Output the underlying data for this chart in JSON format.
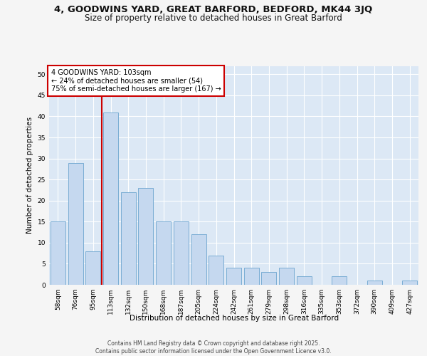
{
  "title_line1": "4, GOODWINS YARD, GREAT BARFORD, BEDFORD, MK44 3JQ",
  "title_line2": "Size of property relative to detached houses in Great Barford",
  "xlabel": "Distribution of detached houses by size in Great Barford",
  "ylabel": "Number of detached properties",
  "categories": [
    "58sqm",
    "76sqm",
    "95sqm",
    "113sqm",
    "132sqm",
    "150sqm",
    "168sqm",
    "187sqm",
    "205sqm",
    "224sqm",
    "242sqm",
    "261sqm",
    "279sqm",
    "298sqm",
    "316sqm",
    "335sqm",
    "353sqm",
    "372sqm",
    "390sqm",
    "409sqm",
    "427sqm"
  ],
  "values": [
    15,
    29,
    8,
    41,
    22,
    23,
    15,
    15,
    12,
    7,
    4,
    4,
    3,
    4,
    2,
    0,
    2,
    0,
    1,
    0,
    1
  ],
  "bar_color": "#c5d8ef",
  "bar_edge_color": "#7aadd4",
  "vline_color": "#cc0000",
  "annotation_text": "4 GOODWINS YARD: 103sqm\n← 24% of detached houses are smaller (54)\n75% of semi-detached houses are larger (167) →",
  "annotation_box_edgecolor": "#cc0000",
  "ylim": [
    0,
    52
  ],
  "yticks": [
    0,
    5,
    10,
    15,
    20,
    25,
    30,
    35,
    40,
    45,
    50
  ],
  "bg_color": "#dce8f5",
  "grid_color": "#ffffff",
  "fig_bg_color": "#f5f5f5",
  "footer_text": "Contains HM Land Registry data © Crown copyright and database right 2025.\nContains public sector information licensed under the Open Government Licence v3.0.",
  "title_fontsize": 9.5,
  "subtitle_fontsize": 8.5,
  "axis_label_fontsize": 7.5,
  "tick_fontsize": 6.5,
  "annotation_fontsize": 7,
  "footer_fontsize": 5.5
}
